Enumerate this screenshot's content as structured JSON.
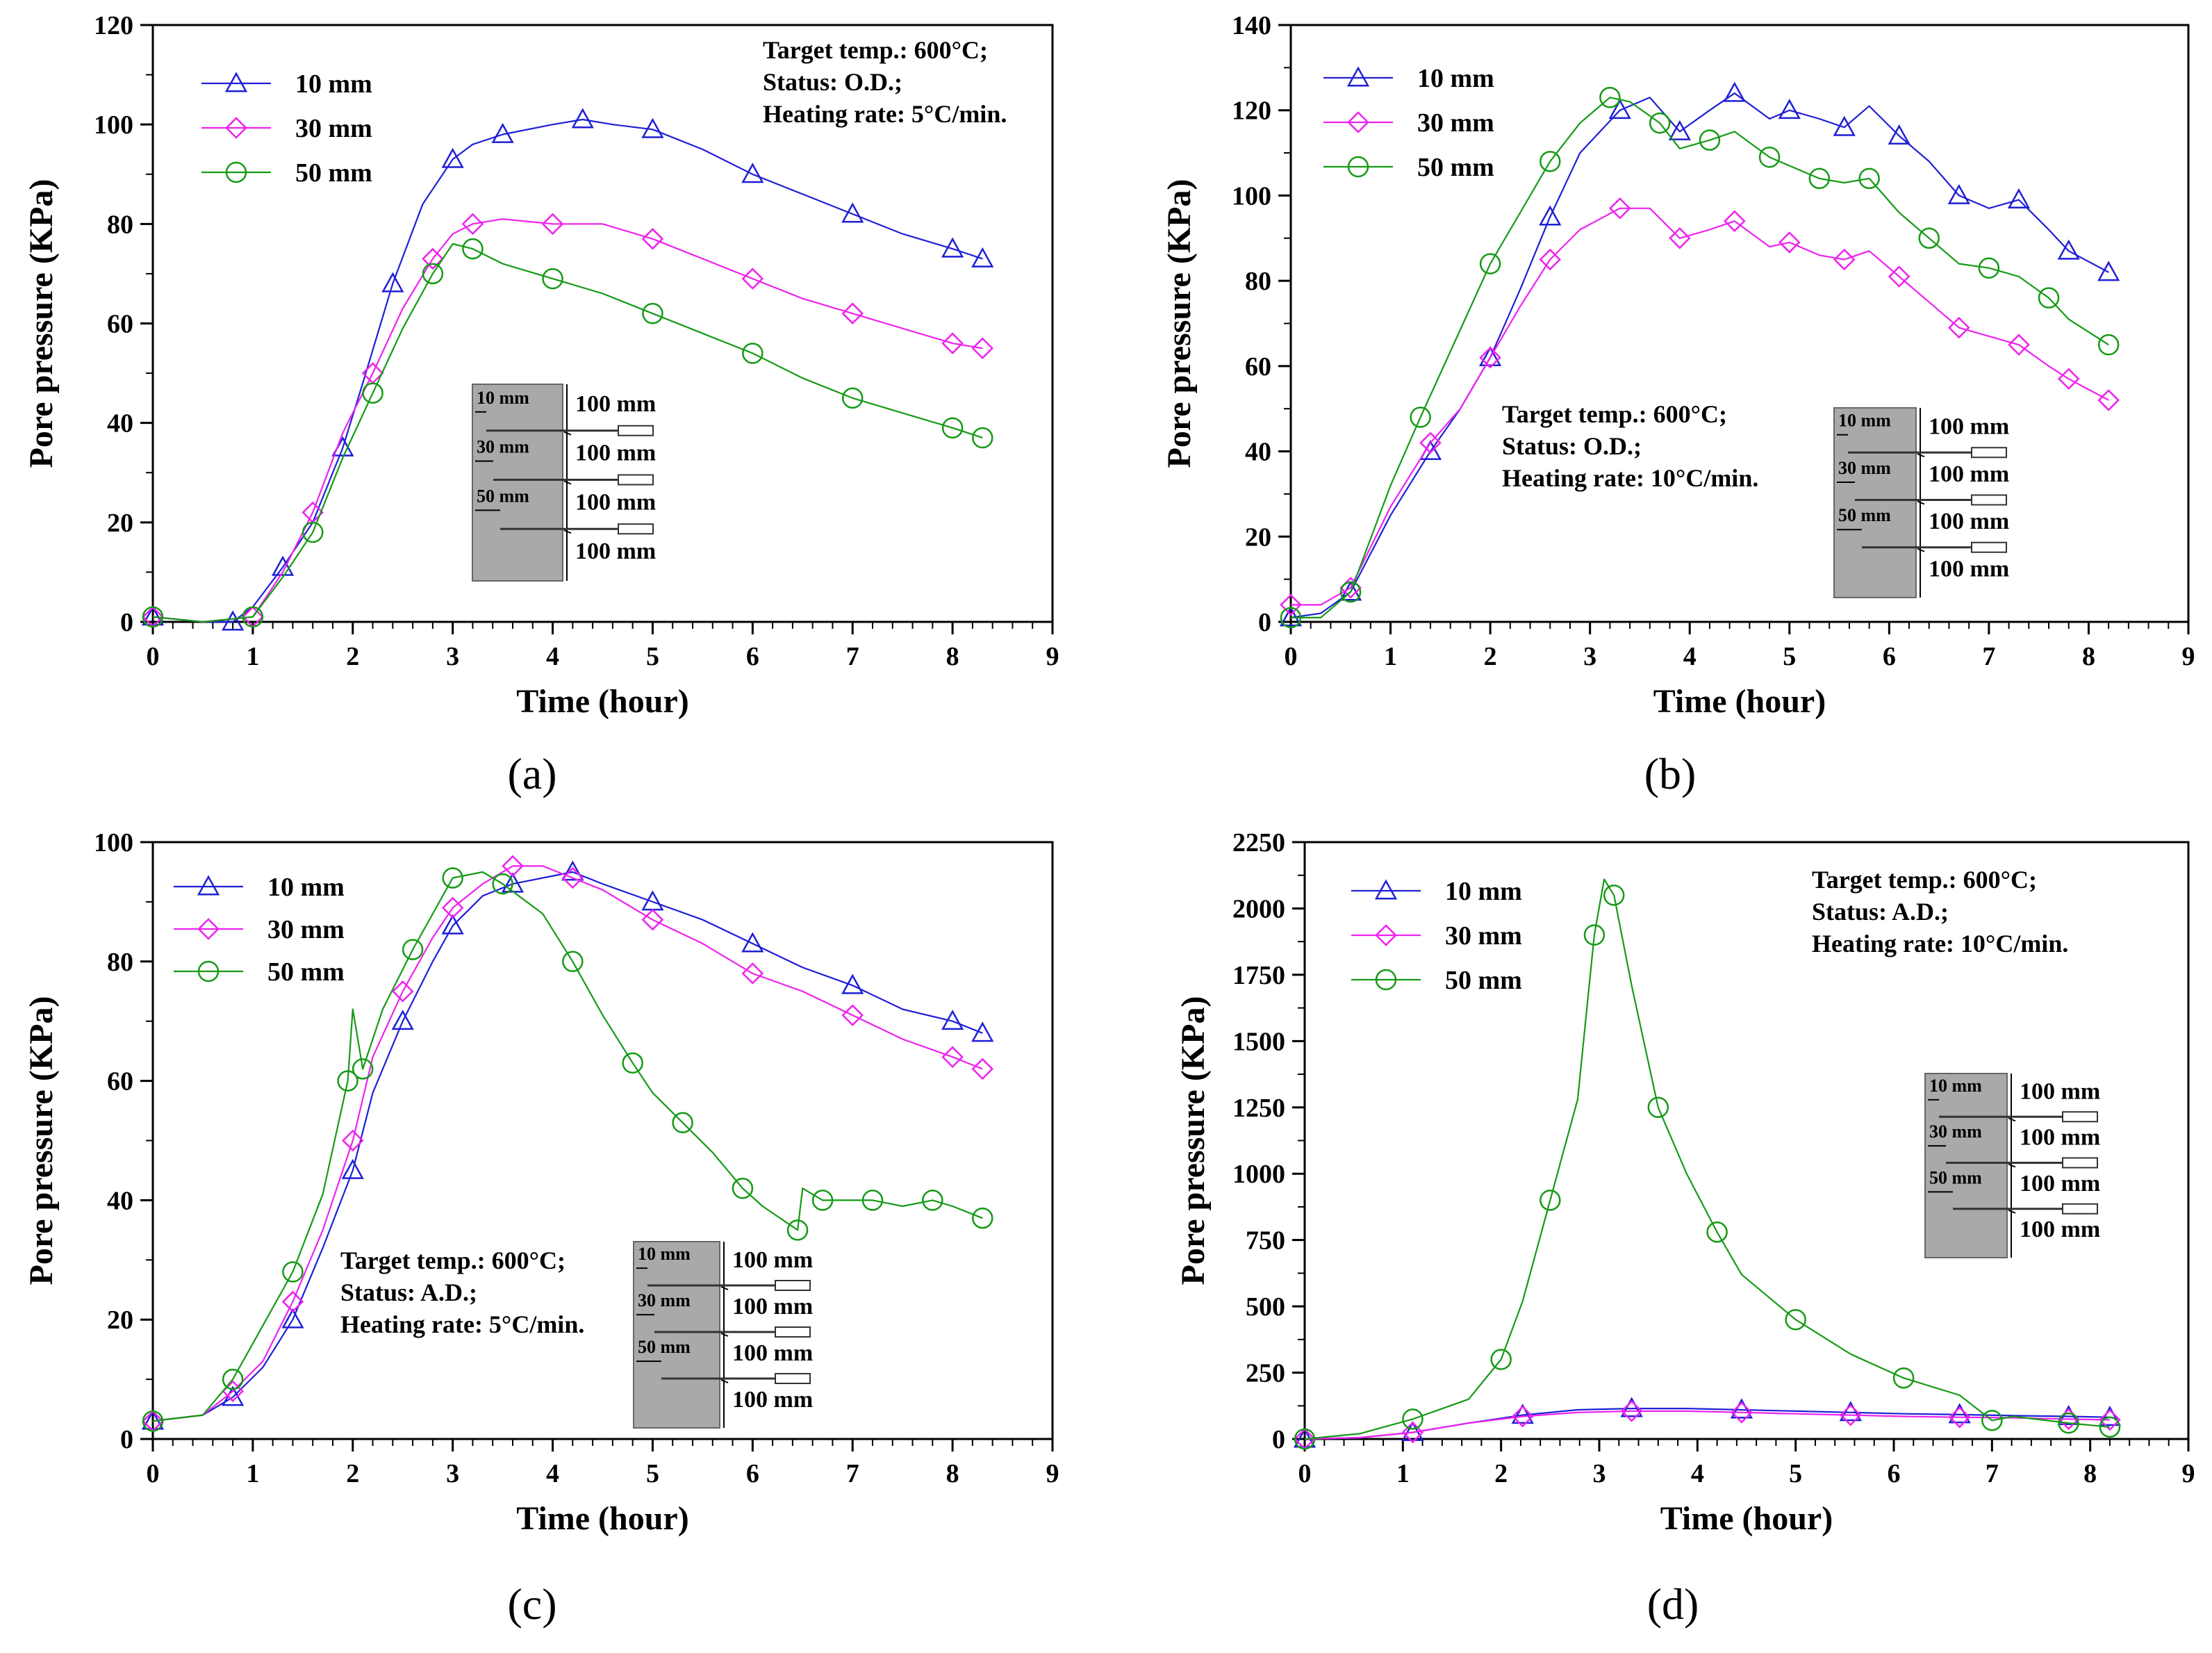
{
  "colors": {
    "s10": "#1f1fd6",
    "s30": "#ee22ee",
    "s50": "#159a15",
    "axis": "#000000",
    "inset_fill": "#a9a9a9"
  },
  "inset_labels": {
    "depths": [
      "10 mm",
      "30 mm",
      "50 mm"
    ],
    "lengths": [
      "100 mm",
      "100 mm",
      "100 mm",
      "100 mm"
    ]
  },
  "chart_data": [
    {
      "panel": "(a)",
      "type": "line",
      "xlabel": "Time (hour)",
      "ylabel": "Pore pressure (KPa)",
      "xlim": [
        0,
        9
      ],
      "ylim": [
        0,
        120
      ],
      "x_ticks": [
        0,
        1,
        2,
        3,
        4,
        5,
        6,
        7,
        8,
        9
      ],
      "y_ticks": [
        0,
        20,
        40,
        60,
        80,
        100,
        120
      ],
      "notes": [
        "Target temp.: 600°C;",
        "Status: O.D.;",
        "Heating rate: 5°C/min."
      ],
      "series": [
        {
          "name": "10 mm",
          "marker": "triangle",
          "x": [
            0,
            0.5,
            0.8,
            1,
            1.3,
            1.6,
            1.9,
            2.1,
            2.4,
            2.7,
            3.0,
            3.2,
            3.5,
            4.0,
            4.3,
            4.6,
            5.0,
            5.5,
            6.0,
            6.5,
            7.0,
            7.5,
            8.0,
            8.3
          ],
          "y": [
            1,
            0,
            0,
            3,
            11,
            20,
            35,
            48,
            68,
            84,
            93,
            96,
            98,
            100,
            101,
            100,
            99,
            95,
            90,
            86,
            82,
            78,
            75,
            73
          ]
        },
        {
          "name": "30 mm",
          "marker": "diamond",
          "x": [
            0,
            0.5,
            1,
            1.3,
            1.6,
            1.9,
            2.2,
            2.5,
            2.8,
            3.0,
            3.2,
            3.5,
            4.0,
            4.5,
            5.0,
            5.5,
            6.0,
            6.5,
            7.0,
            7.5,
            8.0,
            8.3
          ],
          "y": [
            1,
            0,
            1,
            10,
            22,
            38,
            50,
            63,
            73,
            78,
            80,
            81,
            80,
            80,
            77,
            73,
            69,
            65,
            62,
            59,
            56,
            55
          ]
        },
        {
          "name": "50 mm",
          "marker": "circle",
          "x": [
            0,
            0.5,
            1,
            1.3,
            1.6,
            1.9,
            2.2,
            2.5,
            2.8,
            3.0,
            3.2,
            3.5,
            4.0,
            4.5,
            5.0,
            5.5,
            6.0,
            6.5,
            7.0,
            7.5,
            8.0,
            8.3
          ],
          "y": [
            1,
            0,
            1,
            9,
            18,
            33,
            46,
            59,
            70,
            76,
            75,
            72,
            69,
            66,
            62,
            58,
            54,
            49,
            45,
            42,
            39,
            37
          ]
        }
      ]
    },
    {
      "panel": "(b)",
      "type": "line",
      "xlabel": "Time (hour)",
      "ylabel": "Pore pressure (KPa)",
      "xlim": [
        0,
        9
      ],
      "ylim": [
        0,
        140
      ],
      "x_ticks": [
        0,
        1,
        2,
        3,
        4,
        5,
        6,
        7,
        8,
        9
      ],
      "y_ticks": [
        0,
        20,
        40,
        60,
        80,
        100,
        120,
        140
      ],
      "notes": [
        "Target temp.: 600°C;",
        "Status: O.D.;",
        "Heating rate: 10°C/min."
      ],
      "series": [
        {
          "name": "10 mm",
          "marker": "triangle",
          "x": [
            0,
            0.3,
            0.6,
            1.0,
            1.4,
            1.7,
            2.0,
            2.3,
            2.6,
            2.9,
            3.3,
            3.6,
            3.9,
            4.2,
            4.45,
            4.8,
            5.0,
            5.3,
            5.55,
            5.8,
            6.1,
            6.4,
            6.7,
            7.0,
            7.3,
            7.6,
            7.8,
            8.2
          ],
          "y": [
            1,
            2,
            7,
            25,
            40,
            50,
            62,
            78,
            95,
            110,
            120,
            123,
            115,
            120,
            124,
            118,
            120,
            118,
            116,
            121,
            114,
            108,
            100,
            97,
            99,
            92,
            87,
            82
          ]
        },
        {
          "name": "30 mm",
          "marker": "diamond",
          "x": [
            0,
            0.3,
            0.6,
            1.0,
            1.4,
            1.7,
            2.0,
            2.3,
            2.6,
            2.9,
            3.3,
            3.6,
            3.9,
            4.2,
            4.45,
            4.8,
            5.0,
            5.3,
            5.55,
            5.8,
            6.1,
            6.4,
            6.7,
            7.0,
            7.3,
            7.6,
            7.8,
            8.2
          ],
          "y": [
            4,
            4,
            8,
            27,
            42,
            50,
            62,
            74,
            85,
            92,
            97,
            97,
            90,
            92,
            94,
            88,
            89,
            86,
            85,
            87,
            81,
            75,
            69,
            67,
            65,
            60,
            57,
            52
          ]
        },
        {
          "name": "50 mm",
          "marker": "circle",
          "x": [
            0,
            0.3,
            0.6,
            1.0,
            1.3,
            1.65,
            2.0,
            2.3,
            2.6,
            2.9,
            3.2,
            3.4,
            3.7,
            3.9,
            4.2,
            4.45,
            4.8,
            5.0,
            5.3,
            5.55,
            5.8,
            6.1,
            6.4,
            6.7,
            7.0,
            7.3,
            7.6,
            7.8,
            8.2
          ],
          "y": [
            1,
            1,
            7,
            32,
            48,
            66,
            84,
            96,
            108,
            117,
            123,
            122,
            117,
            111,
            113,
            115,
            109,
            107,
            104,
            103,
            104,
            96,
            90,
            84,
            83,
            81,
            76,
            71,
            65
          ]
        }
      ]
    },
    {
      "panel": "(c)",
      "type": "line",
      "xlabel": "Time (hour)",
      "ylabel": "Pore pressure (KPa)",
      "xlim": [
        0,
        9
      ],
      "ylim": [
        0,
        100
      ],
      "x_ticks": [
        0,
        1,
        2,
        3,
        4,
        5,
        6,
        7,
        8,
        9
      ],
      "y_ticks": [
        0,
        20,
        40,
        60,
        80,
        100
      ],
      "notes": [
        "Target temp.: 600°C;",
        "Status: A.D.;",
        "Heating rate: 5°C/min."
      ],
      "series": [
        {
          "name": "10 mm",
          "marker": "triangle",
          "x": [
            0,
            0.5,
            0.8,
            1.1,
            1.4,
            1.7,
            2.0,
            2.2,
            2.5,
            2.8,
            3.0,
            3.3,
            3.6,
            3.9,
            4.2,
            4.5,
            5.0,
            5.5,
            6.0,
            6.5,
            7.0,
            7.5,
            8.0,
            8.3
          ],
          "y": [
            3,
            4,
            7,
            12,
            20,
            32,
            45,
            58,
            70,
            80,
            86,
            91,
            93,
            94,
            95,
            93,
            90,
            87,
            83,
            79,
            76,
            72,
            70,
            68
          ]
        },
        {
          "name": "30 mm",
          "marker": "diamond",
          "x": [
            0,
            0.5,
            0.8,
            1.1,
            1.4,
            1.7,
            2.0,
            2.2,
            2.5,
            2.8,
            3.0,
            3.3,
            3.6,
            3.9,
            4.2,
            4.5,
            5.0,
            5.5,
            6.0,
            6.5,
            7.0,
            7.5,
            8.0,
            8.3
          ],
          "y": [
            3,
            4,
            8,
            13,
            23,
            35,
            50,
            64,
            75,
            84,
            89,
            93,
            96,
            96,
            94,
            92,
            87,
            83,
            78,
            75,
            71,
            67,
            64,
            62
          ]
        },
        {
          "name": "50 mm",
          "marker": "circle",
          "x": [
            0,
            0.5,
            0.8,
            1.1,
            1.4,
            1.7,
            1.95,
            2.0,
            2.1,
            2.3,
            2.6,
            2.8,
            3.0,
            3.3,
            3.5,
            3.9,
            4.2,
            4.5,
            4.8,
            5.0,
            5.3,
            5.6,
            5.9,
            6.1,
            6.45,
            6.5,
            6.7,
            7.0,
            7.2,
            7.5,
            7.8,
            8.0,
            8.3
          ],
          "y": [
            3,
            4,
            10,
            19,
            28,
            41,
            60,
            72,
            62,
            72,
            82,
            88,
            94,
            95,
            93,
            88,
            80,
            71,
            63,
            58,
            53,
            48,
            42,
            39,
            35,
            42,
            40,
            40,
            40,
            39,
            40,
            39,
            37
          ]
        }
      ]
    },
    {
      "panel": "(d)",
      "type": "line",
      "xlabel": "Time (hour)",
      "ylabel": "Pore pressure (KPa)",
      "xlim": [
        0,
        9
      ],
      "ylim": [
        0,
        2250
      ],
      "x_ticks": [
        0,
        1,
        2,
        3,
        4,
        5,
        6,
        7,
        8,
        9
      ],
      "y_ticks": [
        0,
        250,
        500,
        750,
        1000,
        1250,
        1500,
        1750,
        2000,
        2250
      ],
      "notes": [
        "Target temp.: 600°C;",
        "Status: A.D.;",
        "Heating rate: 10°C/min."
      ],
      "series": [
        {
          "name": "10 mm",
          "marker": "triangle",
          "x": [
            0,
            0.56,
            1.1,
            1.67,
            2.22,
            2.78,
            3.33,
            3.89,
            4.45,
            5.0,
            5.56,
            6.1,
            6.67,
            7.22,
            7.78,
            8.2
          ],
          "y": [
            0,
            5,
            25,
            60,
            90,
            110,
            115,
            115,
            110,
            105,
            100,
            95,
            92,
            88,
            85,
            82
          ]
        },
        {
          "name": "30 mm",
          "marker": "diamond",
          "x": [
            0,
            0.56,
            1.1,
            1.67,
            2.22,
            2.78,
            3.33,
            3.89,
            4.45,
            5.0,
            5.56,
            6.1,
            6.67,
            7.22,
            7.78,
            8.2
          ],
          "y": [
            0,
            5,
            25,
            60,
            85,
            100,
            105,
            105,
            100,
            95,
            90,
            85,
            82,
            80,
            75,
            72
          ]
        },
        {
          "name": "50 mm",
          "marker": "circle",
          "x": [
            0,
            0.56,
            1.1,
            1.67,
            2.0,
            2.22,
            2.5,
            2.78,
            2.95,
            3.05,
            3.15,
            3.33,
            3.6,
            3.89,
            4.2,
            4.45,
            5.0,
            5.56,
            6.1,
            6.67,
            7.0,
            7.22,
            7.78,
            8.2
          ],
          "y": [
            0,
            20,
            75,
            150,
            300,
            520,
            900,
            1280,
            1900,
            2110,
            2050,
            1710,
            1250,
            1000,
            780,
            620,
            450,
            320,
            230,
            165,
            70,
            85,
            60,
            45
          ]
        }
      ]
    }
  ]
}
